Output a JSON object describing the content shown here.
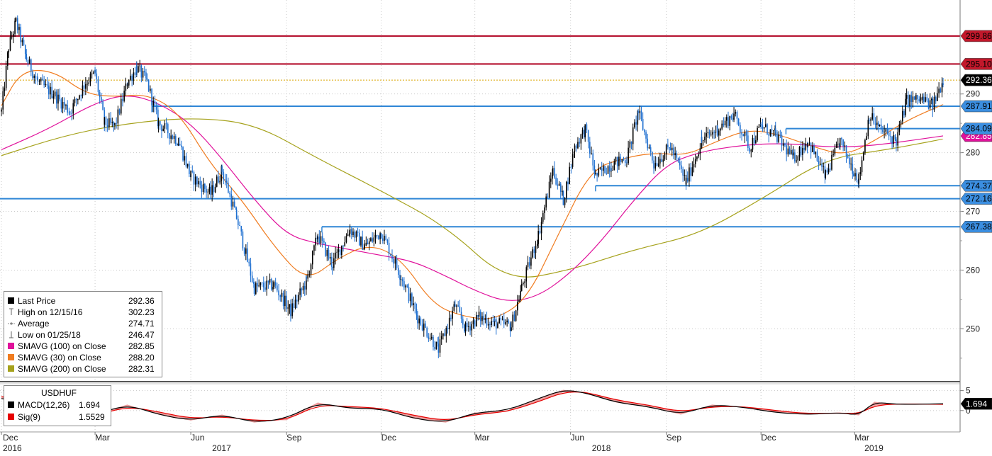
{
  "chart_data": [
    {
      "type": "line",
      "subtype": "candlestick",
      "ylim": [
        241,
        306
      ],
      "yticks": [
        250,
        260,
        270,
        280,
        290
      ],
      "x_months": [
        "Dec",
        "Mar",
        "Jun",
        "Sep",
        "Dec",
        "Mar",
        "Jun",
        "Sep",
        "Dec",
        "Mar"
      ],
      "x_years": [
        "2016",
        "2017",
        "2018",
        "2019"
      ],
      "grid": true,
      "price_path": [
        [
          "2016-12-01",
          287
        ],
        [
          "2016-12-08",
          298
        ],
        [
          "2016-12-15",
          302.23
        ],
        [
          "2016-12-25",
          296
        ],
        [
          "2017-01-05",
          292
        ],
        [
          "2017-01-20",
          290
        ],
        [
          "2017-02-05",
          287
        ],
        [
          "2017-02-20",
          292
        ],
        [
          "2017-03-01",
          293.5
        ],
        [
          "2017-03-10",
          285
        ],
        [
          "2017-03-20",
          284.5
        ],
        [
          "2017-04-01",
          292
        ],
        [
          "2017-04-10",
          294.5
        ],
        [
          "2017-04-20",
          292
        ],
        [
          "2017-05-01",
          285
        ],
        [
          "2017-05-20",
          282
        ],
        [
          "2017-06-01",
          276
        ],
        [
          "2017-06-20",
          273
        ],
        [
          "2017-07-01",
          277
        ],
        [
          "2017-07-15",
          269
        ],
        [
          "2017-08-01",
          257
        ],
        [
          "2017-08-20",
          257.5
        ],
        [
          "2017-09-05",
          253
        ],
        [
          "2017-09-20",
          258
        ],
        [
          "2017-10-01",
          266
        ],
        [
          "2017-10-15",
          261
        ],
        [
          "2017-11-01",
          267
        ],
        [
          "2017-11-15",
          264
        ],
        [
          "2017-12-01",
          266.5
        ],
        [
          "2017-12-20",
          259
        ],
        [
          "2018-01-05",
          252
        ],
        [
          "2018-01-25",
          246.47
        ],
        [
          "2018-02-10",
          254
        ],
        [
          "2018-02-20",
          250
        ],
        [
          "2018-03-05",
          252
        ],
        [
          "2018-03-20",
          251
        ],
        [
          "2018-04-05",
          250.5
        ],
        [
          "2018-04-15",
          257
        ],
        [
          "2018-05-01",
          266
        ],
        [
          "2018-05-15",
          277
        ],
        [
          "2018-05-25",
          272
        ],
        [
          "2018-06-05",
          281
        ],
        [
          "2018-06-15",
          284
        ],
        [
          "2018-06-25",
          276
        ],
        [
          "2018-07-10",
          278
        ],
        [
          "2018-07-25",
          279
        ],
        [
          "2018-08-05",
          287
        ],
        [
          "2018-08-20",
          278
        ],
        [
          "2018-09-05",
          281
        ],
        [
          "2018-09-20",
          275
        ],
        [
          "2018-10-05",
          282
        ],
        [
          "2018-10-20",
          284
        ],
        [
          "2018-11-05",
          286.5
        ],
        [
          "2018-11-20",
          281
        ],
        [
          "2018-12-01",
          284.5
        ],
        [
          "2018-12-15",
          283
        ],
        [
          "2019-01-01",
          279
        ],
        [
          "2019-01-15",
          282
        ],
        [
          "2019-02-01",
          276
        ],
        [
          "2019-02-15",
          282
        ],
        [
          "2019-02-28",
          277
        ],
        [
          "2019-03-05",
          275.5
        ],
        [
          "2019-03-15",
          286.5
        ],
        [
          "2019-03-25",
          284
        ],
        [
          "2019-04-10",
          282
        ],
        [
          "2019-04-20",
          289
        ],
        [
          "2019-05-05",
          289
        ],
        [
          "2019-05-15",
          288
        ],
        [
          "2019-05-25",
          292.36
        ]
      ],
      "sma_30": [
        [
          "2016-12-01",
          288
        ],
        [
          "2016-12-20",
          294
        ],
        [
          "2017-01-20",
          294
        ],
        [
          "2017-02-20",
          290
        ],
        [
          "2017-03-20",
          289.5
        ],
        [
          "2017-04-20",
          290
        ],
        [
          "2017-05-20",
          287
        ],
        [
          "2017-06-20",
          278
        ],
        [
          "2017-07-20",
          272
        ],
        [
          "2017-08-20",
          264
        ],
        [
          "2017-09-20",
          258
        ],
        [
          "2017-10-20",
          262
        ],
        [
          "2017-11-20",
          264.5
        ],
        [
          "2017-12-20",
          262
        ],
        [
          "2018-01-20",
          254
        ],
        [
          "2018-02-20",
          252
        ],
        [
          "2018-03-20",
          251.5
        ],
        [
          "2018-04-20",
          255
        ],
        [
          "2018-05-20",
          266
        ],
        [
          "2018-06-20",
          277
        ],
        [
          "2018-07-20",
          279
        ],
        [
          "2018-08-20",
          280
        ],
        [
          "2018-09-20",
          279.5
        ],
        [
          "2018-10-20",
          282
        ],
        [
          "2018-11-20",
          284
        ],
        [
          "2018-12-20",
          283
        ],
        [
          "2019-01-20",
          281
        ],
        [
          "2019-02-20",
          279.5
        ],
        [
          "2019-03-20",
          282
        ],
        [
          "2019-04-20",
          285.5
        ],
        [
          "2019-05-25",
          288.2
        ]
      ],
      "sma_100": [
        [
          "2016-12-01",
          280.5
        ],
        [
          "2017-01-15",
          284
        ],
        [
          "2017-03-01",
          288.5
        ],
        [
          "2017-04-01",
          290
        ],
        [
          "2017-05-01",
          288.5
        ],
        [
          "2017-06-01",
          285
        ],
        [
          "2017-07-01",
          279
        ],
        [
          "2017-08-01",
          272
        ],
        [
          "2017-09-01",
          266
        ],
        [
          "2017-10-01",
          264.5
        ],
        [
          "2017-11-01",
          263.5
        ],
        [
          "2017-12-01",
          262.5
        ],
        [
          "2018-01-01",
          261.5
        ],
        [
          "2018-02-01",
          259
        ],
        [
          "2018-03-01",
          256.5
        ],
        [
          "2018-04-01",
          254.5
        ],
        [
          "2018-05-01",
          255.5
        ],
        [
          "2018-06-01",
          259.5
        ],
        [
          "2018-07-01",
          265
        ],
        [
          "2018-08-01",
          272
        ],
        [
          "2018-09-01",
          278
        ],
        [
          "2018-10-01",
          280
        ],
        [
          "2018-11-01",
          281
        ],
        [
          "2018-12-01",
          281.5
        ],
        [
          "2019-01-01",
          281.5
        ],
        [
          "2019-02-01",
          281
        ],
        [
          "2019-03-01",
          281
        ],
        [
          "2019-04-01",
          281.5
        ],
        [
          "2019-05-25",
          282.85
        ]
      ],
      "sma_200": [
        [
          "2016-12-01",
          279.5
        ],
        [
          "2017-02-01",
          283
        ],
        [
          "2017-04-01",
          285
        ],
        [
          "2017-06-01",
          286
        ],
        [
          "2017-08-01",
          285
        ],
        [
          "2017-10-01",
          279
        ],
        [
          "2017-12-01",
          273.5
        ],
        [
          "2018-02-01",
          267.5
        ],
        [
          "2018-04-01",
          258
        ],
        [
          "2018-06-01",
          260
        ],
        [
          "2018-08-01",
          263.5
        ],
        [
          "2018-10-01",
          266
        ],
        [
          "2018-12-01",
          272
        ],
        [
          "2019-02-01",
          279
        ],
        [
          "2019-04-01",
          280.5
        ],
        [
          "2019-05-25",
          282.31
        ]
      ],
      "horizontal_levels": [
        {
          "value": 299.86,
          "label": "299.86",
          "color": "#b00020"
        },
        {
          "value": 295.1,
          "label": "295.10",
          "color": "#b00020"
        },
        {
          "value": 287.91,
          "label": "287.91",
          "color": "#2f86d6"
        },
        {
          "value": 284.09,
          "label": "284.09",
          "color": "#2f86d6"
        },
        {
          "value": 274.37,
          "label": "274.37",
          "color": "#2f86d6"
        },
        {
          "value": 272.16,
          "label": "272.16",
          "color": "#2f86d6"
        },
        {
          "value": 267.38,
          "label": "267.38",
          "color": "#2f86d6"
        }
      ],
      "tags": [
        {
          "value": 292.36,
          "label": "292.36",
          "color": "#000000"
        },
        {
          "value": 282.85,
          "label": "282.85",
          "color": "#e0119b"
        }
      ],
      "legend_entries": [
        {
          "label": "Last Price",
          "value": "292.36",
          "color": "#000000"
        },
        {
          "label": "High on 12/15/16",
          "value": "302.23",
          "color": ""
        },
        {
          "label": "Average",
          "value": "274.71",
          "color": ""
        },
        {
          "label": "Low on 01/25/18",
          "value": "246.47",
          "color": ""
        },
        {
          "label": "SMAVG (100)  on Close",
          "value": "282.85",
          "color": "#e0119b"
        },
        {
          "label": "SMAVG (30)  on Close",
          "value": "288.20",
          "color": "#f07c20"
        },
        {
          "label": "SMAVG (200)  on Close",
          "value": "282.31",
          "color": "#a6a21c"
        }
      ],
      "colors": {
        "price": "#000000",
        "price_down": "#1e6fd0",
        "sma30": "#f07c20",
        "sma100": "#e0119b",
        "sma200": "#a6a21c",
        "average": "#d9a400",
        "grid": "#c8c8c8"
      }
    },
    {
      "type": "line",
      "title": "USDHUF",
      "ylim": [
        -5,
        6
      ],
      "yticks": [
        0,
        5
      ],
      "tick_labels": [
        "0",
        "5"
      ],
      "grid": true,
      "macd_path": [
        [
          "2016-12-01",
          3
        ],
        [
          "2017-01-05",
          1.5
        ],
        [
          "2017-02-01",
          -1.5
        ],
        [
          "2017-03-01",
          -1
        ],
        [
          "2017-04-01",
          1.5
        ],
        [
          "2017-05-01",
          -1
        ],
        [
          "2017-06-01",
          -2.5
        ],
        [
          "2017-07-01",
          -1
        ],
        [
          "2017-08-01",
          -3
        ],
        [
          "2017-09-01",
          -2
        ],
        [
          "2017-10-01",
          2
        ],
        [
          "2017-11-01",
          0.5
        ],
        [
          "2017-12-01",
          0.5
        ],
        [
          "2018-01-01",
          -2
        ],
        [
          "2018-02-01",
          -3
        ],
        [
          "2018-03-01",
          -0.5
        ],
        [
          "2018-04-01",
          0
        ],
        [
          "2018-05-01",
          3
        ],
        [
          "2018-05-25",
          5.2
        ],
        [
          "2018-06-15",
          4.5
        ],
        [
          "2018-07-15",
          2
        ],
        [
          "2018-08-15",
          1
        ],
        [
          "2018-09-15",
          -1
        ],
        [
          "2018-10-15",
          1.5
        ],
        [
          "2018-11-15",
          0.8
        ],
        [
          "2018-12-15",
          -0.5
        ],
        [
          "2019-01-15",
          -1
        ],
        [
          "2019-02-15",
          -0.5
        ],
        [
          "2019-03-05",
          -1.2
        ],
        [
          "2019-03-20",
          2.2
        ],
        [
          "2019-04-10",
          1.5
        ],
        [
          "2019-05-25",
          1.694
        ]
      ],
      "signal_path": [
        [
          "2016-12-01",
          3.5
        ],
        [
          "2017-01-05",
          2
        ],
        [
          "2017-02-01",
          -0.8
        ],
        [
          "2017-03-01",
          -1.3
        ],
        [
          "2017-04-01",
          1
        ],
        [
          "2017-05-01",
          -0.3
        ],
        [
          "2017-06-01",
          -2
        ],
        [
          "2017-07-01",
          -1.5
        ],
        [
          "2017-08-01",
          -2.5
        ],
        [
          "2017-09-01",
          -2.4
        ],
        [
          "2017-10-01",
          1.4
        ],
        [
          "2017-11-01",
          1
        ],
        [
          "2017-12-01",
          0.6
        ],
        [
          "2018-01-01",
          -1.2
        ],
        [
          "2018-02-01",
          -2.6
        ],
        [
          "2018-03-01",
          -1
        ],
        [
          "2018-04-01",
          -0.3
        ],
        [
          "2018-05-01",
          2.2
        ],
        [
          "2018-05-25",
          4.6
        ],
        [
          "2018-06-15",
          4.7
        ],
        [
          "2018-07-15",
          2.6
        ],
        [
          "2018-08-15",
          1.4
        ],
        [
          "2018-09-15",
          -0.4
        ],
        [
          "2018-10-15",
          1
        ],
        [
          "2018-11-15",
          1
        ],
        [
          "2018-12-15",
          0
        ],
        [
          "2019-01-15",
          -0.8
        ],
        [
          "2019-02-15",
          -0.6
        ],
        [
          "2019-03-05",
          -0.8
        ],
        [
          "2019-03-20",
          1.2
        ],
        [
          "2019-04-10",
          1.7
        ],
        [
          "2019-05-25",
          1.5529
        ]
      ],
      "tags": [
        {
          "value": 1.694,
          "label": "1.694",
          "color": "#000000"
        }
      ],
      "legend_entries": [
        {
          "label": "MACD(12,26)",
          "value": "1.694",
          "color": "#000000"
        },
        {
          "label": "Sig(9)",
          "value": "1.5529",
          "color": "#e60000"
        }
      ]
    }
  ]
}
